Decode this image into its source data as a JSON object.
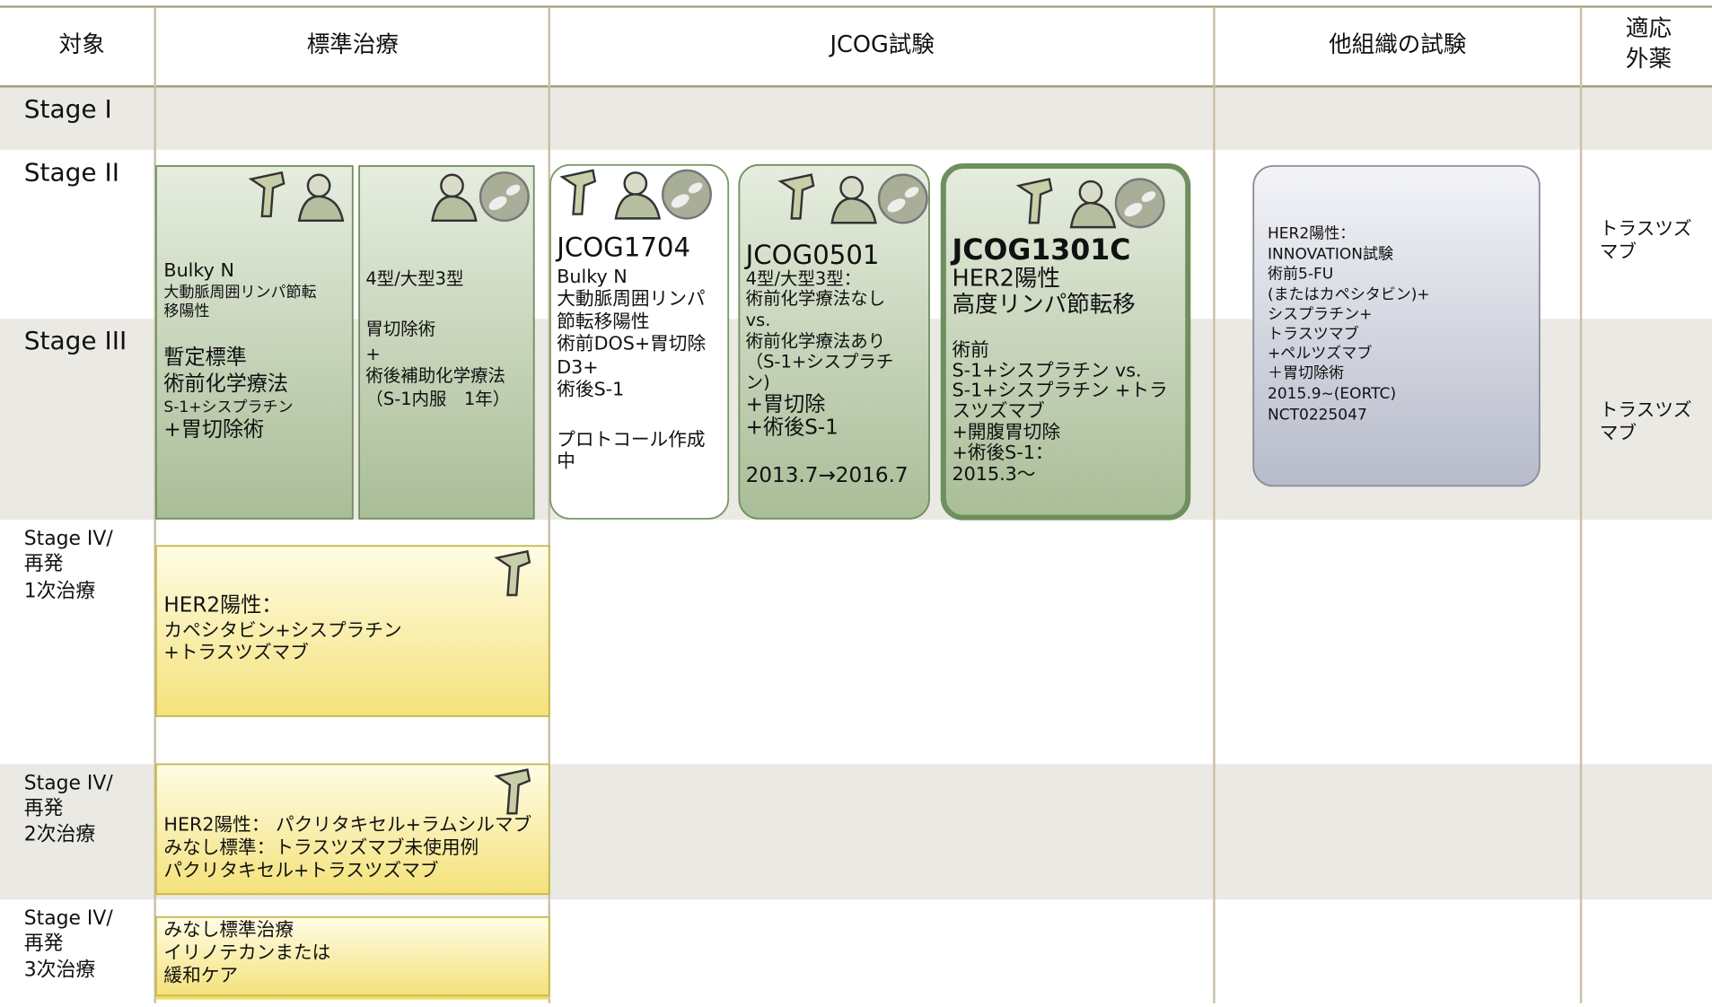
{
  "header": {
    "columns": [
      [
        "対象"
      ],
      [
        "標準治療"
      ],
      [
        "JCOG試験"
      ],
      [
        "他組織の試験"
      ],
      [
        "適応",
        "外薬"
      ]
    ]
  },
  "rows": [
    [
      "Stage I"
    ],
    [
      "Stage II"
    ],
    [
      "Stage III"
    ],
    [
      "Stage IV/",
      "再発",
      "1次治療"
    ],
    [
      "Stage IV/",
      "再発",
      "2次治療"
    ],
    [
      "Stage IV/",
      "再発",
      "3次治療"
    ]
  ],
  "boxes": [
    {
      "lines": [
        "Bulky N",
        "大動脈周囲リンパ節転",
        "移陽性",
        "暫定標準",
        "術前化学療法",
        "S-1+シスプラチン",
        "+胃切除術"
      ]
    },
    {
      "lines": [
        "4型/大型3型",
        "胃切除術",
        "+",
        "術後補助化学療法",
        "（S-1内服　1年）"
      ]
    },
    {
      "lines": [
        "JCOG1704",
        "Bulky N",
        "大動脈周囲リンパ",
        "節転移陽性",
        "術前DOS+胃切除",
        "D3+",
        "術後S-1",
        "プロトコール作成",
        "中"
      ]
    },
    {
      "lines": [
        "JCOG0501",
        "4型/大型3型：",
        "術前化学療法なし",
        "vs.",
        "術前化学療法あり",
        "（S-1+シスプラチ",
        "ン)",
        "+胃切除",
        "+術後S-1",
        "2013.7→2016.7"
      ]
    },
    {
      "lines": [
        "JCOG1301C",
        "HER2陽性",
        "高度リンパ節転移",
        "術前",
        "S-1+シスプラチン vs.",
        "S-1+シスプラチン +トラ",
        "スツズマブ",
        "+開腹胃切除",
        "+術後S-1：",
        "2015.3～"
      ]
    },
    {
      "lines": [
        "HER2陽性：",
        "INNOVATION試験",
        "術前5-FU",
        "(またはカペシタビン)+",
        "シスプラチン+",
        "トラスツマブ",
        "+ペルツズマブ",
        "＋胃切除術",
        "2015.9~(EORTC)",
        "NCT0225047"
      ]
    },
    {
      "lines": [
        "HER2陽性：",
        "カペシタビン+シスプラチン",
        "+トラスツズマブ"
      ]
    },
    {
      "lines": [
        "HER2陽性： パクリタキセル+ラムシルマブ",
        "みなし標準：トラスツズマブ未使用例",
        "パクリタキセル+トラスツズマブ"
      ]
    },
    {
      "lines": [
        "みなし標準治療",
        "イリノテカンまたは",
        "緩和ケア"
      ]
    }
  ],
  "off_label": [
    [
      "トラスツズ",
      "マブ"
    ],
    [
      "トラスツズ",
      "マブ"
    ]
  ]
}
